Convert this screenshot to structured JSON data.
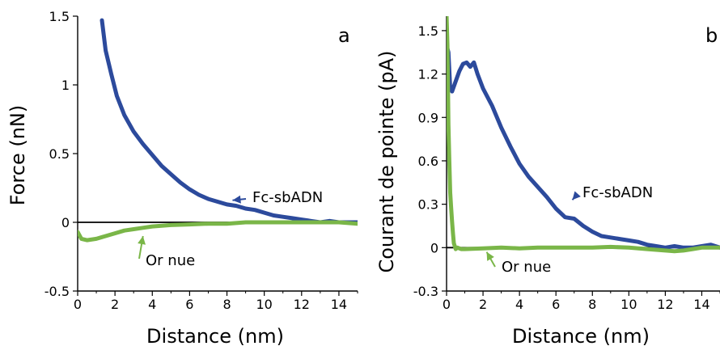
{
  "chart_data": [
    {
      "type": "line",
      "panel_label": "a",
      "xlabel": "Distance (nm)",
      "ylabel": "Force (nN)",
      "xlim": [
        0,
        15
      ],
      "ylim": [
        -0.5,
        1.5
      ],
      "xticks": [
        "0",
        "2",
        "4",
        "6",
        "8",
        "10",
        "12",
        "14"
      ],
      "yticks": [
        "-0.5",
        "0",
        "0.5",
        "1",
        "1.5"
      ],
      "grid": false,
      "zero_line": true,
      "series": [
        {
          "name": "Fc-sbADN",
          "color": "#2c4a9c",
          "x": [
            1.3,
            1.5,
            1.8,
            2.1,
            2.5,
            3.0,
            3.5,
            4.0,
            4.5,
            5.0,
            5.5,
            6.0,
            6.5,
            7.0,
            7.5,
            8.0,
            8.5,
            9.0,
            9.5,
            10.0,
            10.5,
            11.0,
            11.5,
            12.0,
            12.5,
            13.0,
            13.5,
            14.0,
            14.5,
            15.0
          ],
          "y": [
            1.47,
            1.25,
            1.08,
            0.92,
            0.78,
            0.66,
            0.57,
            0.49,
            0.41,
            0.35,
            0.29,
            0.24,
            0.2,
            0.17,
            0.15,
            0.13,
            0.12,
            0.1,
            0.09,
            0.07,
            0.05,
            0.04,
            0.03,
            0.02,
            0.01,
            0.0,
            0.01,
            0.0,
            0.0,
            0.0
          ]
        },
        {
          "name": "Or nue",
          "color": "#7ab648",
          "x": [
            0.0,
            0.2,
            0.5,
            1.0,
            1.5,
            2.0,
            2.5,
            3.0,
            3.5,
            4.0,
            5.0,
            6.0,
            7.0,
            8.0,
            9.0,
            10.0,
            11.0,
            12.0,
            13.0,
            14.0,
            15.0
          ],
          "y": [
            -0.07,
            -0.12,
            -0.13,
            -0.12,
            -0.1,
            -0.08,
            -0.06,
            -0.05,
            -0.04,
            -0.03,
            -0.02,
            -0.015,
            -0.01,
            -0.01,
            0.0,
            0.0,
            0.0,
            0.0,
            0.0,
            0.0,
            -0.01
          ]
        }
      ],
      "annotations": [
        {
          "text": "Fc-sbADN",
          "series": "Fc-sbADN",
          "x": 8.5,
          "y": 0.17
        },
        {
          "text": "Or nue",
          "series": "Or nue",
          "x": 3.0,
          "y": -0.17
        }
      ]
    },
    {
      "type": "line",
      "panel_label": "b",
      "xlabel": "Distance (nm)",
      "ylabel": "Courant de pointe (pA)",
      "xlim": [
        0,
        15
      ],
      "ylim": [
        -0.3,
        1.6
      ],
      "xticks": [
        "0",
        "2",
        "4",
        "6",
        "8",
        "10",
        "12",
        "14"
      ],
      "yticks": [
        "-0.3",
        "0",
        "0.3",
        "0.6",
        "0.9",
        "1.2",
        "1.5"
      ],
      "grid": false,
      "zero_line": true,
      "series": [
        {
          "name": "Fc-sbADN",
          "color": "#2c4a9c",
          "x": [
            0.0,
            0.1,
            0.2,
            0.3,
            0.5,
            0.7,
            0.9,
            1.1,
            1.3,
            1.5,
            1.7,
            2.0,
            2.5,
            3.0,
            3.5,
            4.0,
            4.5,
            5.0,
            5.5,
            6.0,
            6.5,
            7.0,
            7.5,
            8.0,
            8.5,
            9.0,
            9.5,
            10.0,
            10.5,
            11.0,
            11.5,
            12.0,
            12.5,
            13.0,
            13.5,
            14.0,
            14.5,
            15.0
          ],
          "y": [
            1.4,
            1.35,
            1.1,
            1.08,
            1.15,
            1.22,
            1.27,
            1.28,
            1.25,
            1.28,
            1.2,
            1.1,
            0.98,
            0.83,
            0.7,
            0.58,
            0.49,
            0.42,
            0.35,
            0.27,
            0.21,
            0.2,
            0.15,
            0.11,
            0.08,
            0.07,
            0.06,
            0.05,
            0.04,
            0.02,
            0.01,
            0.0,
            0.01,
            0.0,
            0.0,
            0.01,
            0.02,
            0.0
          ]
        },
        {
          "name": "Or nue",
          "color": "#7ab648",
          "x": [
            0.0,
            0.05,
            0.1,
            0.15,
            0.2,
            0.25,
            0.3,
            0.35,
            0.4,
            0.5,
            0.6,
            0.8,
            1.0,
            2.0,
            3.0,
            4.0,
            5.0,
            6.0,
            7.0,
            8.0,
            9.0,
            10.0,
            11.0,
            11.5,
            12.0,
            12.5,
            13.0,
            13.5,
            14.0,
            15.0
          ],
          "y": [
            1.6,
            1.4,
            0.85,
            0.6,
            0.38,
            0.28,
            0.18,
            0.1,
            0.03,
            -0.01,
            0.0,
            -0.01,
            -0.01,
            -0.005,
            0.0,
            -0.005,
            0.0,
            0.0,
            0.0,
            0.0,
            0.005,
            0.0,
            -0.01,
            -0.015,
            -0.02,
            -0.025,
            -0.02,
            -0.01,
            0.0,
            0.0
          ]
        }
      ],
      "annotations": [
        {
          "text": "Fc-sbADN",
          "series": "Fc-sbADN",
          "x": 7.0,
          "y": 0.35
        },
        {
          "text": "Or nue",
          "series": "Or nue",
          "x": 3.0,
          "y": -0.12
        }
      ]
    }
  ]
}
